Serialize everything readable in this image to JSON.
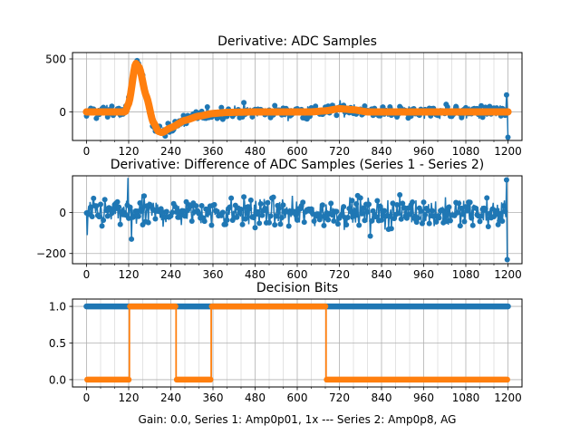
{
  "figure_label": "Gain: 0.0, Series 1: Amp0p01, 1x --- Series 2: Amp0p8, AG",
  "colors": {
    "series1": "#1f77b4",
    "series2": "#ff7f0e",
    "grid": "#b0b0b0"
  },
  "chart_data": [
    {
      "type": "line",
      "title": "Derivative: ADC Samples",
      "xlabel": "",
      "ylabel": "",
      "xlim": [
        -40,
        1240
      ],
      "ylim": [
        -270,
        560
      ],
      "xticks": [
        0,
        120,
        240,
        360,
        480,
        600,
        720,
        840,
        960,
        1080,
        1200
      ],
      "xtick_labels": [
        "0",
        "120",
        "240",
        "360",
        "480",
        "600",
        "720",
        "840",
        "960",
        "1080",
        "1200"
      ],
      "x_minor_step": 40,
      "yticks": [
        0,
        500
      ],
      "ytick_labels": [
        "0",
        "500"
      ],
      "grid": true,
      "series": [
        {
          "name": "Series 1",
          "style": "noisy-markers",
          "description": "noisy ADC derivative samples following series 2 trend with ~±60 noise, endpoint spike to ~160 and ~-240 at x=1200",
          "trend": [
            [
              0,
              0
            ],
            [
              110,
              0
            ],
            [
              120,
              80
            ],
            [
              140,
              470
            ],
            [
              150,
              420
            ],
            [
              170,
              150
            ],
            [
              190,
              -100
            ],
            [
              205,
              -190
            ],
            [
              215,
              -200
            ],
            [
              240,
              -150
            ],
            [
              280,
              -80
            ],
            [
              320,
              -40
            ],
            [
              360,
              -15
            ],
            [
              400,
              -5
            ],
            [
              480,
              0
            ],
            [
              640,
              0
            ],
            [
              680,
              10
            ],
            [
              720,
              30
            ],
            [
              760,
              20
            ],
            [
              800,
              0
            ],
            [
              1200,
              0
            ]
          ],
          "noise": 55,
          "end_spikes": [
            160,
            -240
          ]
        },
        {
          "name": "Series 2",
          "style": "thick-markers",
          "values_xy": [
            [
              0,
              0
            ],
            [
              110,
              0
            ],
            [
              120,
              80
            ],
            [
              140,
              460
            ],
            [
              150,
              420
            ],
            [
              170,
              150
            ],
            [
              190,
              -100
            ],
            [
              205,
              -185
            ],
            [
              215,
              -195
            ],
            [
              240,
              -150
            ],
            [
              280,
              -80
            ],
            [
              320,
              -40
            ],
            [
              360,
              -15
            ],
            [
              400,
              -5
            ],
            [
              480,
              0
            ],
            [
              640,
              0
            ],
            [
              680,
              10
            ],
            [
              720,
              30
            ],
            [
              760,
              20
            ],
            [
              800,
              0
            ],
            [
              1200,
              0
            ]
          ]
        }
      ]
    },
    {
      "type": "line",
      "title": "Derivative: Difference of ADC Samples (Series 1 - Series 2)",
      "xlabel": "",
      "ylabel": "",
      "xlim": [
        -40,
        1240
      ],
      "ylim": [
        -250,
        180
      ],
      "xticks": [
        0,
        120,
        240,
        360,
        480,
        600,
        720,
        840,
        960,
        1080,
        1200
      ],
      "xtick_labels": [
        "0",
        "120",
        "240",
        "360",
        "480",
        "600",
        "720",
        "840",
        "960",
        "1080",
        "1200"
      ],
      "x_minor_step": 40,
      "yticks": [
        -200,
        0
      ],
      "ytick_labels": [
        "−200",
        "0"
      ],
      "grid": true,
      "series": [
        {
          "name": "Difference",
          "style": "noisy-markers",
          "description": "zero-mean noise ~±60, spikes: 170 at x≈118, -130 at x≈128, -110 at x≈2, 160 and -230 at x≈1198",
          "noise": 55,
          "spikes": [
            [
              2,
              -110
            ],
            [
              118,
              170
            ],
            [
              128,
              -130
            ],
            [
              808,
              -115
            ],
            [
              895,
              -115
            ],
            [
              1196,
              160
            ],
            [
              1198,
              -230
            ]
          ]
        }
      ]
    },
    {
      "type": "line",
      "title": "Decision Bits",
      "xlabel": "Gain: 0.0, Series 1: Amp0p01, 1x --- Series 2: Amp0p8, AG",
      "ylabel": "",
      "xlim": [
        -40,
        1240
      ],
      "ylim": [
        -0.1,
        1.1
      ],
      "xticks": [
        0,
        120,
        240,
        360,
        480,
        600,
        720,
        840,
        960,
        1080,
        1200
      ],
      "xtick_labels": [
        "0",
        "120",
        "240",
        "360",
        "480",
        "600",
        "720",
        "840",
        "960",
        "1080",
        "1200"
      ],
      "x_minor_step": 40,
      "yticks": [
        0.0,
        0.5,
        1.0
      ],
      "ytick_labels": [
        "0.0",
        "0.5",
        "1.0"
      ],
      "grid": true,
      "series": [
        {
          "name": "Series 1",
          "segments": [
            [
              0,
              1200,
              1
            ]
          ]
        },
        {
          "name": "Series 2",
          "segments": [
            [
              0,
              122,
              0
            ],
            [
              122,
              255,
              1
            ],
            [
              255,
              355,
              0
            ],
            [
              355,
              682,
              1
            ],
            [
              682,
              1200,
              0
            ]
          ]
        }
      ]
    }
  ]
}
